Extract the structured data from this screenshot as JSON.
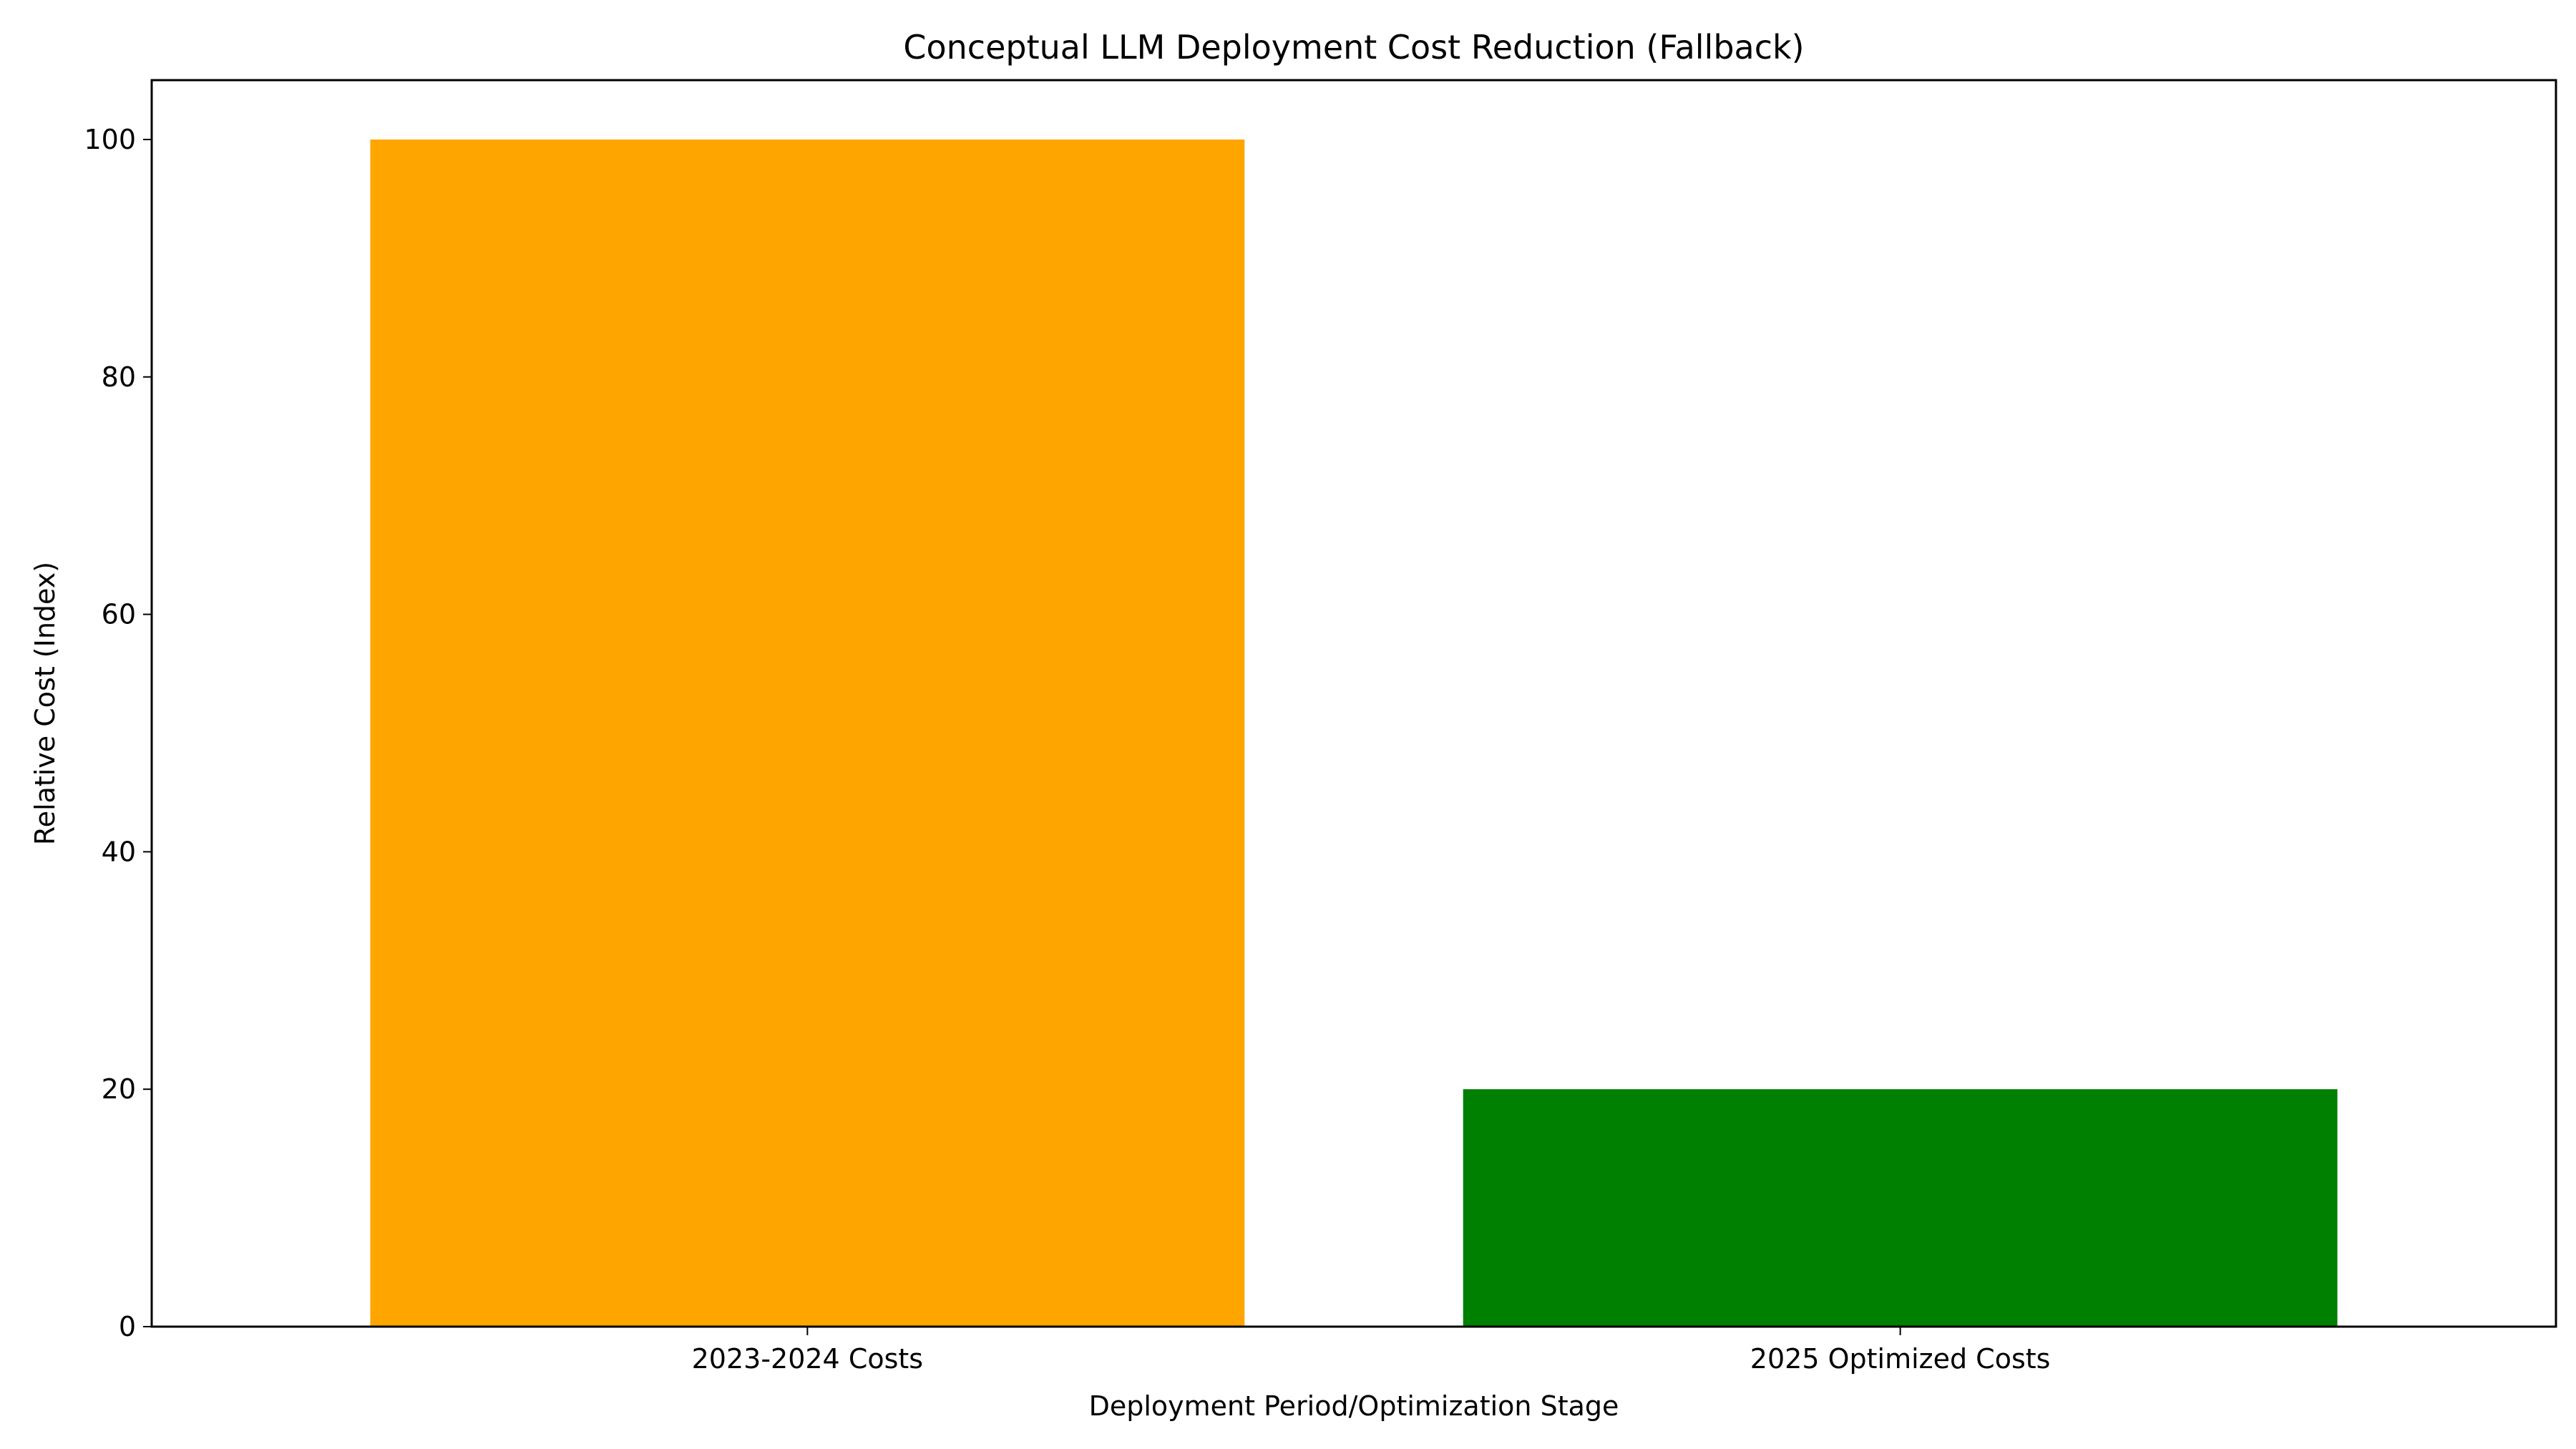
{
  "chart_data": {
    "type": "bar",
    "title": "Conceptual LLM Deployment Cost Reduction (Fallback)",
    "xlabel": "Deployment Period/Optimization Stage",
    "ylabel": "Relative Cost (Index)",
    "categories": [
      "2023-2024 Costs",
      "2025 Optimized Costs"
    ],
    "values": [
      100,
      20
    ],
    "colors": [
      "#ffa500",
      "#008000"
    ],
    "ylim": [
      0,
      105
    ],
    "yticks": [
      0,
      20,
      40,
      60,
      80,
      100
    ],
    "grid": false,
    "legend": "none"
  }
}
